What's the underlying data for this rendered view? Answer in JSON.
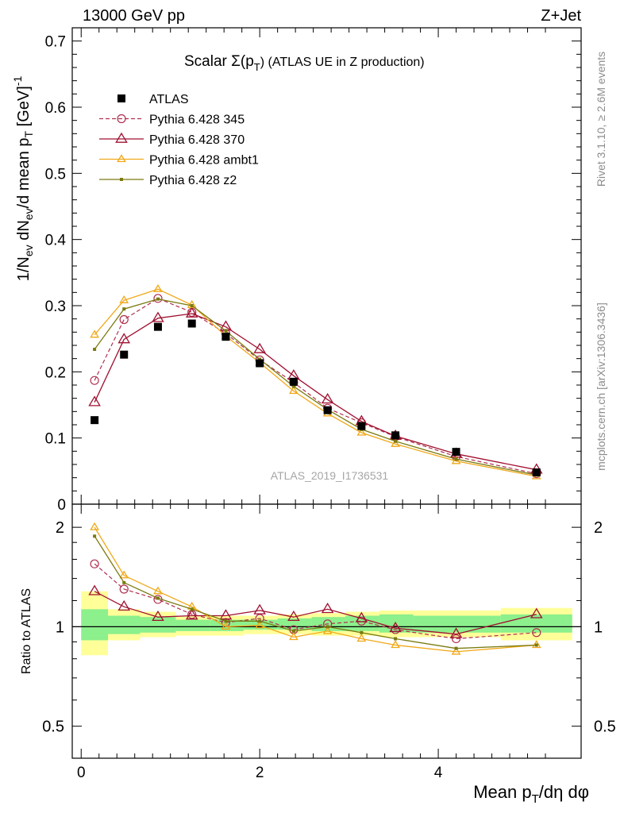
{
  "header": {
    "left": "13000 GeV pp",
    "right": "Z+Jet"
  },
  "side_labels": {
    "rivet": "Rivet 3.1.10, ≥ 2.6M events",
    "mcplots": "mcplots.cern.ch [arXiv:1306.3436]"
  },
  "colors": {
    "atlas": "#000000",
    "p345": "#b03050",
    "p370": "#a01030",
    "ambt1": "#f0a818",
    "z2": "#7a7a10",
    "band_inner": "#8cf08c",
    "band_outer": "#ffff99"
  },
  "chart_data": [
    {
      "type": "scatter",
      "title_main": "Scalar Σ(p",
      "title_sub": "T",
      "title_tail": ") (ATLAS UE in Z production)",
      "watermark": "ATLAS_2019_I1736531",
      "ylabel": "1/N_ev dN_ev/d mean p_T [GeV]^-1",
      "ylim": [
        0,
        0.72
      ],
      "xlim": [
        -0.1,
        5.6
      ],
      "yticks": [
        "0",
        "0.1",
        "0.2",
        "0.3",
        "0.4",
        "0.5",
        "0.6",
        "0.7"
      ],
      "x": [
        0.15,
        0.48,
        0.86,
        1.24,
        1.62,
        2.0,
        2.38,
        2.76,
        3.14,
        3.52,
        4.2,
        5.1
      ],
      "series": [
        {
          "name": "ATLAS",
          "values": [
            0.127,
            0.226,
            0.268,
            0.273,
            0.253,
            0.213,
            0.185,
            0.142,
            0.118,
            0.104,
            0.079,
            0.048
          ]
        },
        {
          "name": "Pythia 6.428 345",
          "values": [
            0.187,
            0.279,
            0.311,
            0.29,
            0.258,
            0.218,
            0.184,
            0.145,
            0.123,
            0.102,
            0.072,
            0.046
          ]
        },
        {
          "name": "Pythia 6.428 370",
          "values": [
            0.154,
            0.249,
            0.281,
            0.288,
            0.268,
            0.234,
            0.194,
            0.158,
            0.125,
            0.103,
            0.076,
            0.052
          ]
        },
        {
          "name": "Pythia 6.428 ambt1",
          "values": [
            0.256,
            0.308,
            0.325,
            0.301,
            0.254,
            0.214,
            0.171,
            0.137,
            0.108,
            0.091,
            0.065,
            0.042
          ]
        },
        {
          "name": "Pythia 6.428 z2",
          "values": [
            0.234,
            0.295,
            0.31,
            0.3,
            0.262,
            0.219,
            0.178,
            0.143,
            0.113,
            0.095,
            0.068,
            0.044
          ]
        }
      ]
    },
    {
      "type": "line",
      "ylabel": "Ratio to ATLAS",
      "ylim": [
        0.4,
        2.35
      ],
      "log_y": true,
      "yticks": [
        "0.5",
        "1",
        "2"
      ],
      "xticks": [
        "0",
        "2",
        "4"
      ],
      "xlabel": "Mean p_T/dη dφ",
      "x": [
        0.15,
        0.48,
        0.86,
        1.24,
        1.62,
        2.0,
        2.38,
        2.76,
        3.14,
        3.52,
        4.2,
        5.1
      ],
      "bins": [
        0.0,
        0.3,
        0.66,
        1.06,
        1.44,
        1.82,
        2.2,
        2.58,
        2.96,
        3.34,
        3.72,
        4.7,
        5.5
      ],
      "band_inner": [
        [
          0.91,
          1.13
        ],
        [
          0.95,
          1.08
        ],
        [
          0.96,
          1.07
        ],
        [
          0.97,
          1.05
        ],
        [
          0.97,
          1.05
        ],
        [
          0.98,
          1.05
        ],
        [
          0.98,
          1.06
        ],
        [
          0.97,
          1.07
        ],
        [
          0.97,
          1.08
        ],
        [
          0.96,
          1.09
        ],
        [
          0.96,
          1.08
        ],
        [
          0.96,
          1.09
        ]
      ],
      "band_outer": [
        [
          0.82,
          1.28
        ],
        [
          0.91,
          1.13
        ],
        [
          0.93,
          1.11
        ],
        [
          0.94,
          1.08
        ],
        [
          0.94,
          1.08
        ],
        [
          0.95,
          1.08
        ],
        [
          0.95,
          1.09
        ],
        [
          0.94,
          1.1
        ],
        [
          0.94,
          1.11
        ],
        [
          0.93,
          1.12
        ],
        [
          0.93,
          1.12
        ],
        [
          0.91,
          1.14
        ]
      ],
      "series": [
        {
          "name": "Pythia 6.428 345",
          "values": [
            1.55,
            1.3,
            1.21,
            1.09,
            1.03,
            1.06,
            0.98,
            1.02,
            1.04,
            0.98,
            0.92,
            0.96
          ]
        },
        {
          "name": "Pythia 6.428 370",
          "values": [
            1.28,
            1.15,
            1.07,
            1.08,
            1.08,
            1.12,
            1.07,
            1.13,
            1.06,
            0.99,
            0.95,
            1.09
          ]
        },
        {
          "name": "Pythia 6.428 ambt1",
          "values": [
            2.0,
            1.43,
            1.28,
            1.15,
            1.0,
            1.01,
            0.93,
            0.97,
            0.92,
            0.88,
            0.84,
            0.88
          ]
        },
        {
          "name": "Pythia 6.428 z2",
          "values": [
            1.88,
            1.36,
            1.22,
            1.13,
            1.04,
            1.04,
            0.97,
            1.0,
            0.96,
            0.92,
            0.86,
            0.88
          ]
        }
      ]
    }
  ]
}
